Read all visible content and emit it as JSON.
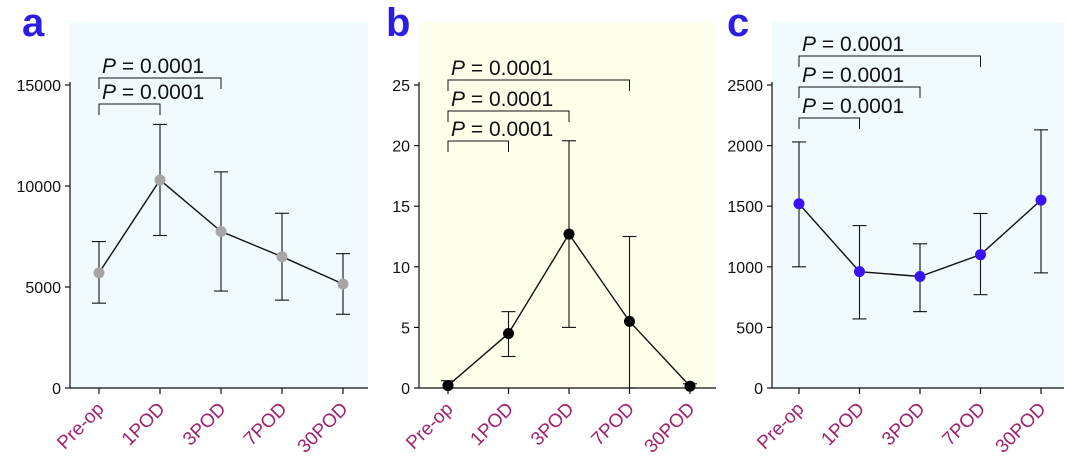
{
  "chart_data": [
    {
      "panel": "a",
      "type": "line",
      "categories": [
        "Pre-op",
        "1POD",
        "3POD",
        "7POD",
        "30POD"
      ],
      "values": [
        5700,
        10300,
        7750,
        6500,
        5150
      ],
      "error_upper": [
        7250,
        13050,
        10700,
        8650,
        6650
      ],
      "error_lower": [
        4200,
        7550,
        4800,
        4350,
        3650
      ],
      "yticks": [
        "0",
        "5000",
        "10000",
        "15000"
      ],
      "ylim": [
        0,
        15000
      ],
      "background": "#f1fbfe",
      "marker_color": "#a6a6a6",
      "annotations": [
        {
          "text": "P = 0.0001",
          "p_letter": "P",
          "rest": " = 0.0001",
          "from": 0,
          "to": 1
        },
        {
          "text": "P = 0.0001",
          "p_letter": "P",
          "rest": " = 0.0001",
          "from": 0,
          "to": 2
        }
      ]
    },
    {
      "panel": "b",
      "type": "line",
      "categories": [
        "Pre-op",
        "1POD",
        "3POD",
        "7POD",
        "30POD"
      ],
      "values": [
        0.2,
        4.5,
        12.7,
        5.5,
        0.15
      ],
      "error_upper": [
        0.6,
        6.3,
        20.4,
        12.5,
        0.35
      ],
      "error_lower": [
        0,
        2.6,
        5.0,
        0,
        0
      ],
      "yticks": [
        "0",
        "5",
        "10",
        "15",
        "20",
        "25"
      ],
      "ylim": [
        0,
        25
      ],
      "background": "#fefeeb",
      "marker_color": "#000000",
      "annotations": [
        {
          "text": "P = 0.0001",
          "p_letter": "P",
          "rest": " = 0.0001",
          "from": 0,
          "to": 1
        },
        {
          "text": "P = 0.0001",
          "p_letter": "P",
          "rest": " = 0.0001",
          "from": 0,
          "to": 2
        },
        {
          "text": "P = 0.0001",
          "p_letter": "P",
          "rest": " = 0.0001",
          "from": 0,
          "to": 3
        }
      ]
    },
    {
      "panel": "c",
      "type": "line",
      "categories": [
        "Pre-op",
        "1POD",
        "3POD",
        "7POD",
        "30POD"
      ],
      "values": [
        1520,
        960,
        920,
        1100,
        1550
      ],
      "error_upper": [
        2030,
        1340,
        1190,
        1440,
        2130
      ],
      "error_lower": [
        1000,
        570,
        630,
        770,
        950
      ],
      "yticks": [
        "0",
        "500",
        "1000",
        "1500",
        "2000",
        "2500"
      ],
      "ylim": [
        0,
        2500
      ],
      "background": "#f1fbfe",
      "marker_color": "#3a13f2",
      "annotations": [
        {
          "text": "P = 0.0001",
          "p_letter": "P",
          "rest": " = 0.0001",
          "from": 0,
          "to": 1
        },
        {
          "text": "P = 0.0001",
          "p_letter": "P",
          "rest": " = 0.0001",
          "from": 0,
          "to": 2
        },
        {
          "text": "P = 0.0001",
          "p_letter": "P",
          "rest": " = 0.0001",
          "from": 0,
          "to": 3
        }
      ]
    }
  ],
  "colors": {
    "panel_letter": "#2b1ce6",
    "category_label": "#a1246e",
    "axis": "#111111"
  }
}
